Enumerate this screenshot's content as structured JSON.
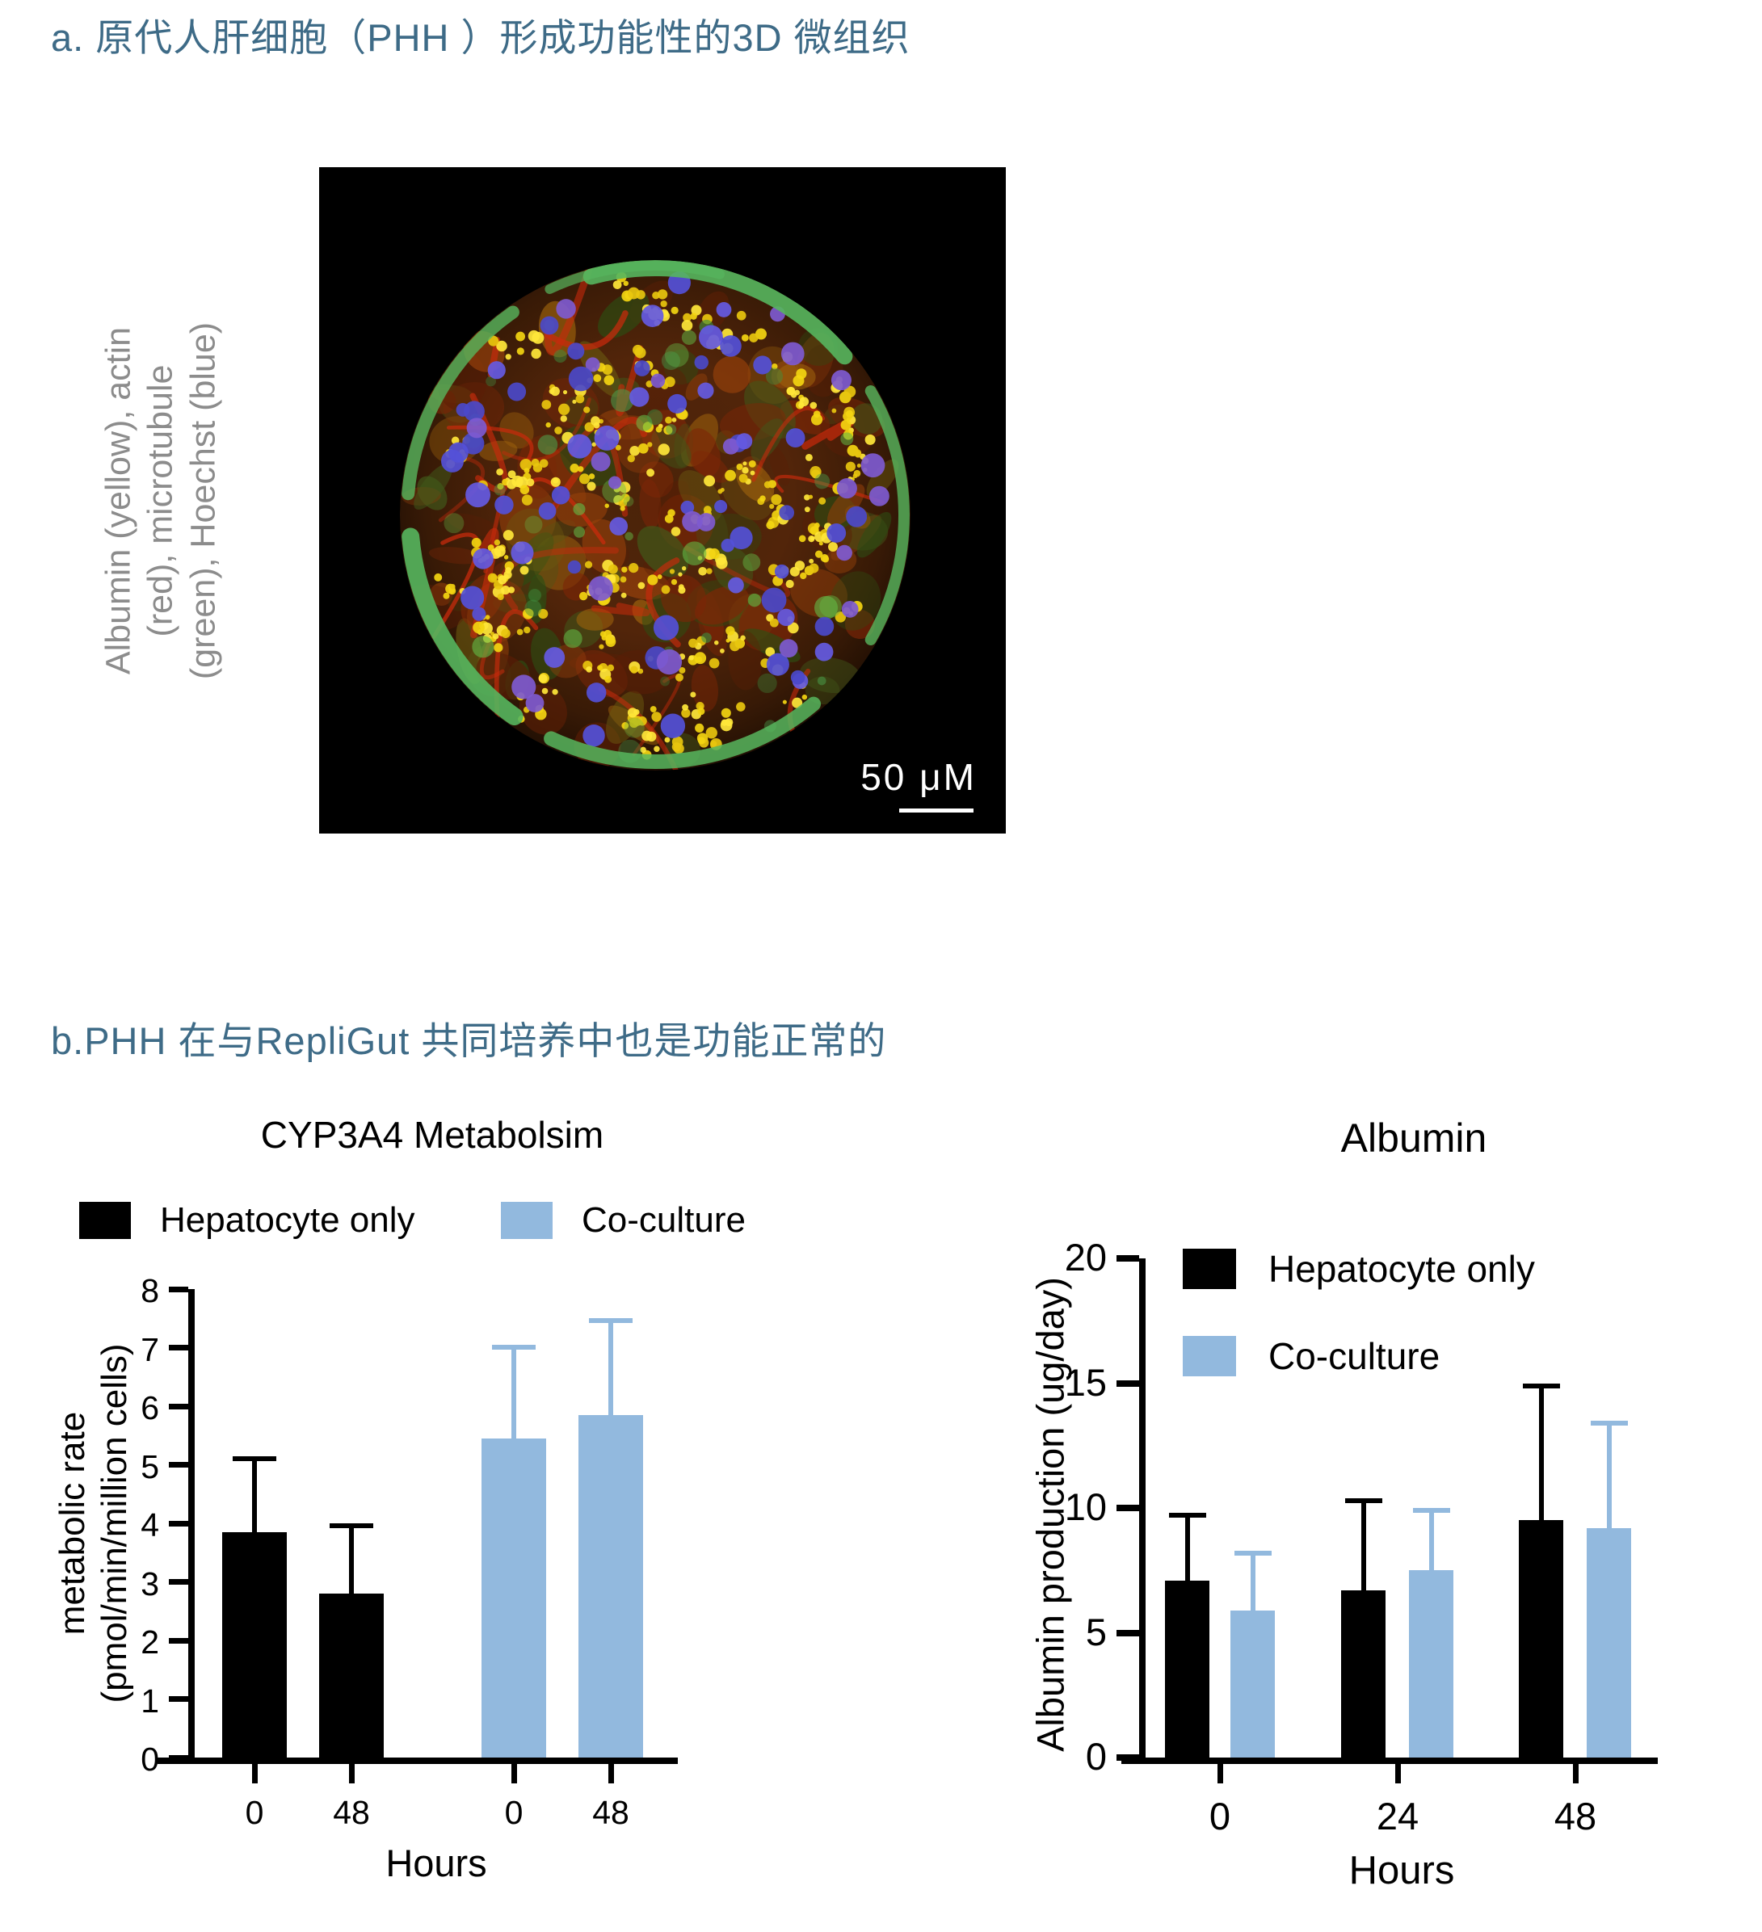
{
  "colors": {
    "heading_teal": "#3e6b87",
    "hepatocyte_black": "#000000",
    "co_culture_blue": "#92b9de",
    "side_label_gray": "#8c8c8c",
    "scale_text_white": "#ffffff"
  },
  "panel_a": {
    "title": "a. 原代人肝细胞（PHH ）形成功能性的3D 微组织",
    "side_label": "Albumin  (yellow), actin\n(red), microtubule\n(green), Hoechst (blue)",
    "scale_bar_text": "50 μM"
  },
  "panel_b": {
    "title": "b.PHH 在与RepliGut  共同培养中也是功能正常的"
  },
  "chart_data": [
    {
      "type": "bar",
      "title": "CYP3A4 Metabolsim",
      "ylabel": "metabolic rate\n(pmol/min/million cells)",
      "xlabel": "Hours",
      "ylim": [
        0,
        8
      ],
      "yticks": [
        0,
        1,
        2,
        3,
        4,
        5,
        6,
        7,
        8
      ],
      "grid": false,
      "legend_position": "above-plot",
      "series": [
        {
          "name": "Hepatocyte only",
          "color": "#000000"
        },
        {
          "name": "Co-culture",
          "color": "#92b9de"
        }
      ],
      "x_tick_labels": [
        "0",
        "48",
        "0",
        "48"
      ],
      "bars": [
        {
          "series": "Hepatocyte only",
          "category": "0",
          "value": 3.85,
          "error_plus": 1.3
        },
        {
          "series": "Hepatocyte only",
          "category": "48",
          "value": 2.8,
          "error_plus": 1.2
        },
        {
          "series": "Co-culture",
          "category": "0",
          "value": 5.45,
          "error_plus": 1.6
        },
        {
          "series": "Co-culture",
          "category": "48",
          "value": 5.85,
          "error_plus": 1.65
        }
      ]
    },
    {
      "type": "bar",
      "title": "Albumin",
      "ylabel": "Albumin production (ug/day)",
      "xlabel": "Hours",
      "ylim": [
        0,
        20
      ],
      "yticks": [
        0,
        5,
        10,
        15,
        20
      ],
      "grid": false,
      "legend_position": "inside-top-left",
      "series": [
        {
          "name": "Hepatocyte only",
          "color": "#000000"
        },
        {
          "name": "Co-culture",
          "color": "#92b9de"
        }
      ],
      "x_tick_labels": [
        "0",
        "24",
        "48"
      ],
      "bars": [
        {
          "series": "Hepatocyte only",
          "category": "0",
          "value": 7.1,
          "error_plus": 2.7
        },
        {
          "series": "Co-culture",
          "category": "0",
          "value": 5.9,
          "error_plus": 2.4
        },
        {
          "series": "Hepatocyte only",
          "category": "24",
          "value": 6.7,
          "error_plus": 3.7
        },
        {
          "series": "Co-culture",
          "category": "24",
          "value": 7.5,
          "error_plus": 2.5
        },
        {
          "series": "Hepatocyte only",
          "category": "48",
          "value": 9.5,
          "error_plus": 5.5
        },
        {
          "series": "Co-culture",
          "category": "48",
          "value": 9.2,
          "error_plus": 4.3
        }
      ]
    }
  ]
}
